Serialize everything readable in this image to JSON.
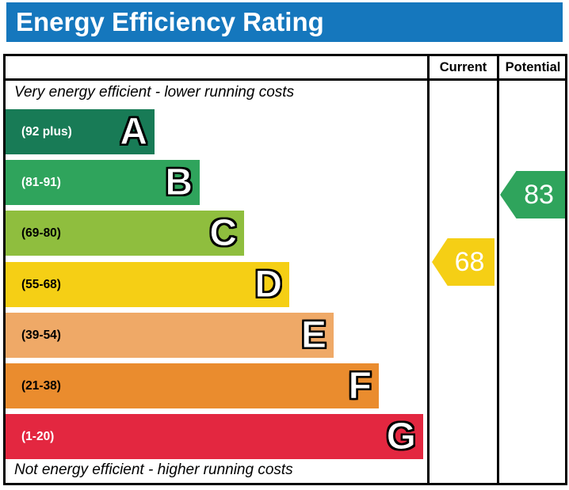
{
  "title": "Energy Efficiency Rating",
  "colors": {
    "title_bar_bg": "#1577bd",
    "title_text": "#ffffff",
    "border": "#000000"
  },
  "table": {
    "columns": [
      "Current",
      "Potential"
    ],
    "top_caption": "Very energy efficient - lower running costs",
    "bottom_caption": "Not energy efficient - higher running costs"
  },
  "chart_data": {
    "type": "bar",
    "title": "Energy Efficiency Rating",
    "legend_position": "none",
    "grid": false,
    "bands": [
      {
        "letter": "A",
        "range": "(92 plus)",
        "min": 92,
        "max": 100,
        "color": "#187b56",
        "label_color": "#ffffff"
      },
      {
        "letter": "B",
        "range": "(81-91)",
        "min": 81,
        "max": 91,
        "color": "#2fa45c",
        "label_color": "#ffffff"
      },
      {
        "letter": "C",
        "range": "(69-80)",
        "min": 69,
        "max": 80,
        "color": "#8fbe3e",
        "label_color": "#000000"
      },
      {
        "letter": "D",
        "range": "(55-68)",
        "min": 55,
        "max": 68,
        "color": "#f5cf15",
        "label_color": "#000000"
      },
      {
        "letter": "E",
        "range": "(39-54)",
        "min": 39,
        "max": 54,
        "color": "#efa967",
        "label_color": "#000000"
      },
      {
        "letter": "F",
        "range": "(21-38)",
        "min": 21,
        "max": 38,
        "color": "#ea8c2e",
        "label_color": "#000000"
      },
      {
        "letter": "G",
        "range": "(1-20)",
        "min": 1,
        "max": 20,
        "color": "#e32740",
        "label_color": "#ffffff"
      }
    ],
    "current": {
      "value": 68,
      "band": "D",
      "color": "#f5cf15",
      "text_color": "#ffffff"
    },
    "potential": {
      "value": 83,
      "band": "B",
      "color": "#2fa45c",
      "text_color": "#ffffff"
    }
  }
}
